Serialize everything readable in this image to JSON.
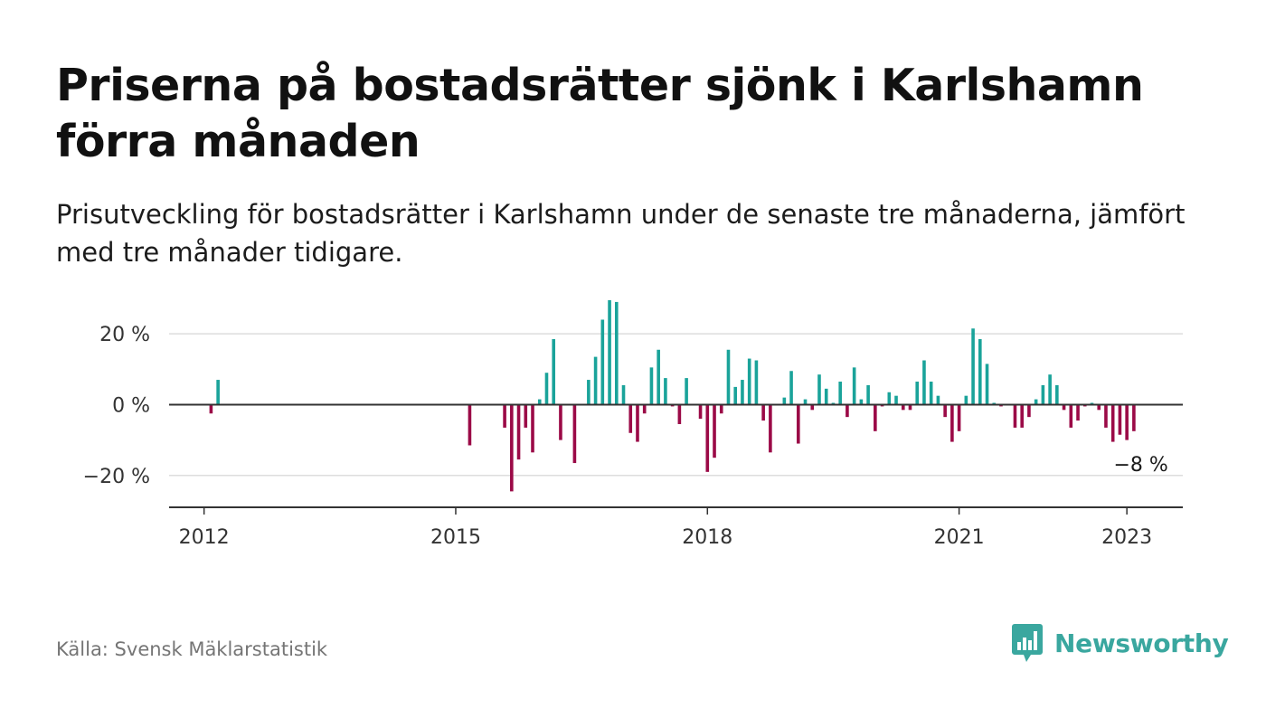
{
  "header": {
    "title": "Priserna på bostadsrätter sjönk i Karlshamn förra månaden",
    "subtitle": "Prisutveckling för bostadsrätter i Karlshamn under de senaste tre månaderna, jämfört med tre månader tidigare."
  },
  "footer": {
    "source": "Källa: Svensk Mäklarstatistik",
    "brand": "Newsworthy"
  },
  "colors": {
    "positive": "#1aa39a",
    "negative": "#9b0a47",
    "grid": "#dddddd",
    "axis": "#333333",
    "brand": "#3aa79f"
  },
  "icons": {
    "brand_logo": "bar-chart-speech-bubble-icon"
  },
  "chart_data": {
    "type": "bar",
    "title": "",
    "xlabel": "",
    "ylabel": "",
    "ylim": [
      -29,
      30
    ],
    "yticks": [
      {
        "value": 20,
        "label": "20 %"
      },
      {
        "value": 0,
        "label": "0 %"
      },
      {
        "value": -20,
        "label": "−20 %"
      }
    ],
    "xlim": [
      "2011-08",
      "2023-09"
    ],
    "xticks": [
      {
        "date": "2012-01",
        "label": "2012"
      },
      {
        "date": "2015-01",
        "label": "2015"
      },
      {
        "date": "2018-01",
        "label": "2018"
      },
      {
        "date": "2021-01",
        "label": "2021"
      },
      {
        "date": "2023-01",
        "label": "2023"
      }
    ],
    "annotation": {
      "date": "2023-03",
      "value": -8,
      "label": "−8 %"
    },
    "grid": true,
    "legend": "none",
    "series": [
      {
        "points": [
          {
            "x": "2012-02",
            "y": -2.5
          },
          {
            "x": "2012-03",
            "y": 7
          },
          {
            "x": "2015-03",
            "y": -11.5
          },
          {
            "x": "2015-08",
            "y": -6.5
          },
          {
            "x": "2015-09",
            "y": -24.5
          },
          {
            "x": "2015-10",
            "y": -15.5
          },
          {
            "x": "2015-11",
            "y": -6.5
          },
          {
            "x": "2015-12",
            "y": -13.5
          },
          {
            "x": "2016-01",
            "y": 1.5
          },
          {
            "x": "2016-02",
            "y": 9
          },
          {
            "x": "2016-03",
            "y": 18.5
          },
          {
            "x": "2016-04",
            "y": -10
          },
          {
            "x": "2016-06",
            "y": -16.5
          },
          {
            "x": "2016-08",
            "y": 7
          },
          {
            "x": "2016-09",
            "y": 13.5
          },
          {
            "x": "2016-10",
            "y": 24
          },
          {
            "x": "2016-11",
            "y": 29.5
          },
          {
            "x": "2016-12",
            "y": 29
          },
          {
            "x": "2017-01",
            "y": 5.5
          },
          {
            "x": "2017-02",
            "y": -8
          },
          {
            "x": "2017-03",
            "y": -10.5
          },
          {
            "x": "2017-04",
            "y": -2.5
          },
          {
            "x": "2017-05",
            "y": 10.5
          },
          {
            "x": "2017-06",
            "y": 15.5
          },
          {
            "x": "2017-07",
            "y": 7.5
          },
          {
            "x": "2017-08",
            "y": -0.5
          },
          {
            "x": "2017-09",
            "y": -5.5
          },
          {
            "x": "2017-10",
            "y": 7.5
          },
          {
            "x": "2017-12",
            "y": -4
          },
          {
            "x": "2018-01",
            "y": -19
          },
          {
            "x": "2018-02",
            "y": -15
          },
          {
            "x": "2018-03",
            "y": -2.5
          },
          {
            "x": "2018-04",
            "y": 15.5
          },
          {
            "x": "2018-05",
            "y": 5
          },
          {
            "x": "2018-06",
            "y": 7
          },
          {
            "x": "2018-07",
            "y": 13
          },
          {
            "x": "2018-08",
            "y": 12.5
          },
          {
            "x": "2018-09",
            "y": -4.5
          },
          {
            "x": "2018-10",
            "y": -13.5
          },
          {
            "x": "2018-12",
            "y": 2
          },
          {
            "x": "2019-01",
            "y": 9.5
          },
          {
            "x": "2019-02",
            "y": -11
          },
          {
            "x": "2019-03",
            "y": 1.5
          },
          {
            "x": "2019-04",
            "y": -1.5
          },
          {
            "x": "2019-05",
            "y": 8.5
          },
          {
            "x": "2019-06",
            "y": 4.5
          },
          {
            "x": "2019-07",
            "y": 0.5
          },
          {
            "x": "2019-08",
            "y": 6.5
          },
          {
            "x": "2019-09",
            "y": -3.5
          },
          {
            "x": "2019-10",
            "y": 10.5
          },
          {
            "x": "2019-11",
            "y": 1.5
          },
          {
            "x": "2019-12",
            "y": 5.5
          },
          {
            "x": "2020-01",
            "y": -7.5
          },
          {
            "x": "2020-02",
            "y": -0.5
          },
          {
            "x": "2020-03",
            "y": 3.5
          },
          {
            "x": "2020-04",
            "y": 2.5
          },
          {
            "x": "2020-05",
            "y": -1.5
          },
          {
            "x": "2020-06",
            "y": -1.5
          },
          {
            "x": "2020-07",
            "y": 6.5
          },
          {
            "x": "2020-08",
            "y": 12.5
          },
          {
            "x": "2020-09",
            "y": 6.5
          },
          {
            "x": "2020-10",
            "y": 2.5
          },
          {
            "x": "2020-11",
            "y": -3.5
          },
          {
            "x": "2020-12",
            "y": -10.5
          },
          {
            "x": "2021-01",
            "y": -7.5
          },
          {
            "x": "2021-02",
            "y": 2.5
          },
          {
            "x": "2021-03",
            "y": 21.5
          },
          {
            "x": "2021-04",
            "y": 18.5
          },
          {
            "x": "2021-05",
            "y": 11.5
          },
          {
            "x": "2021-06",
            "y": 0.5
          },
          {
            "x": "2021-07",
            "y": -0.5
          },
          {
            "x": "2021-09",
            "y": -6.5
          },
          {
            "x": "2021-10",
            "y": -6.5
          },
          {
            "x": "2021-11",
            "y": -3.5
          },
          {
            "x": "2021-12",
            "y": 1.5
          },
          {
            "x": "2022-01",
            "y": 5.5
          },
          {
            "x": "2022-02",
            "y": 8.5
          },
          {
            "x": "2022-03",
            "y": 5.5
          },
          {
            "x": "2022-04",
            "y": -1.5
          },
          {
            "x": "2022-05",
            "y": -6.5
          },
          {
            "x": "2022-06",
            "y": -4.5
          },
          {
            "x": "2022-07",
            "y": -0.5
          },
          {
            "x": "2022-08",
            "y": 0.5
          },
          {
            "x": "2022-09",
            "y": -1.5
          },
          {
            "x": "2022-10",
            "y": -6.5
          },
          {
            "x": "2022-11",
            "y": -10.5
          },
          {
            "x": "2022-12",
            "y": -8.5
          },
          {
            "x": "2023-01",
            "y": -10
          },
          {
            "x": "2023-02",
            "y": -7.5
          }
        ]
      }
    ]
  }
}
